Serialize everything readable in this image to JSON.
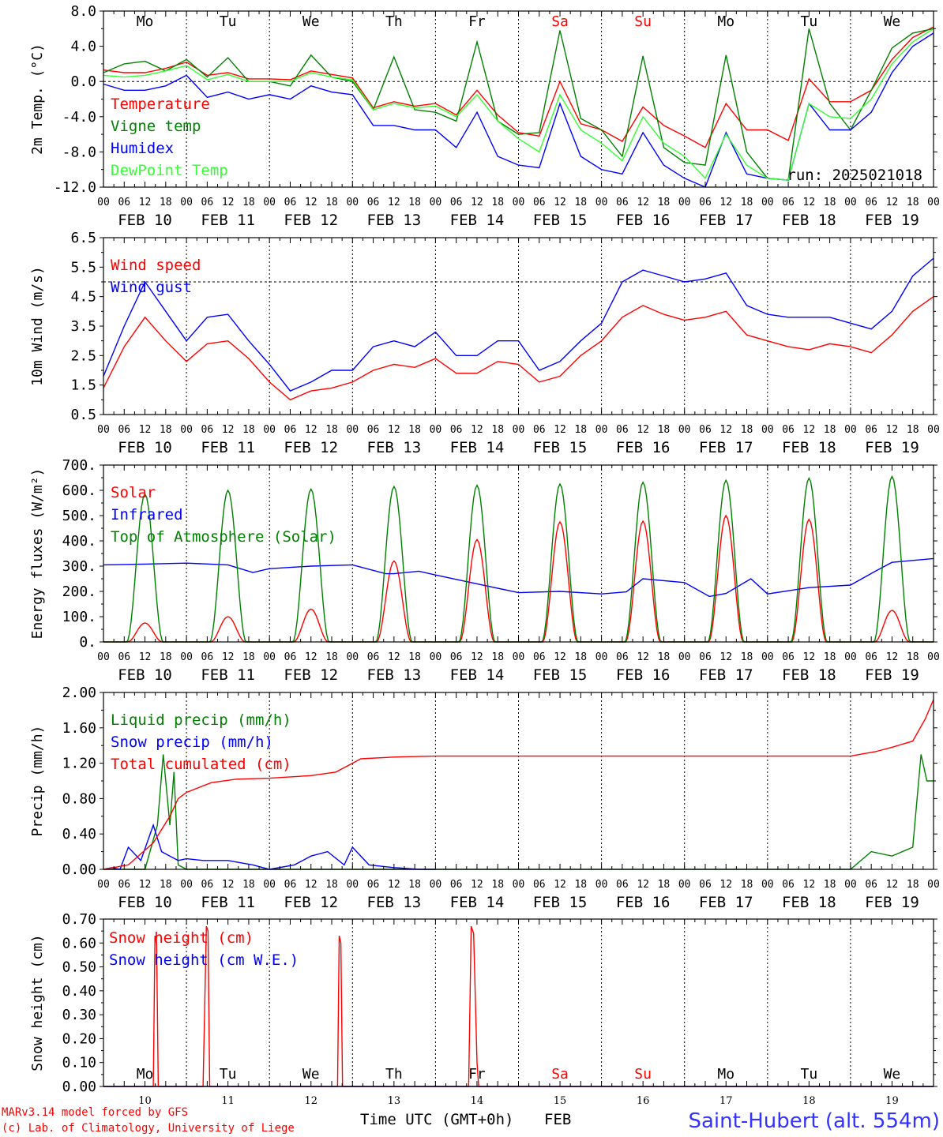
{
  "footer": {
    "model_line": "MARv3.14 model forced by GFS",
    "lab_line": "(c) Lab. of Climatology, University of Liege",
    "axis_title": "Time UTC (GMT+0h)",
    "month": "FEB",
    "station": "Saint-Hubert (alt. 554m)"
  },
  "colors": {
    "red": "#ff0000",
    "dark_green": "#008000",
    "blue": "#0000ff",
    "light_green": "#33ff33",
    "station_blue": "#3333ff"
  },
  "hour_ticks": [
    "00",
    "06",
    "12",
    "18"
  ],
  "final_hour": "00",
  "date_labels": [
    "FEB 10",
    "FEB 11",
    "FEB 12",
    "FEB 13",
    "FEB 14",
    "FEB 15",
    "FEB 16",
    "FEB 17",
    "FEB 18",
    "FEB 19"
  ],
  "weekdays": [
    {
      "label": "Mo",
      "weekend": false
    },
    {
      "label": "Tu",
      "weekend": false
    },
    {
      "label": "We",
      "weekend": false
    },
    {
      "label": "Th",
      "weekend": false
    },
    {
      "label": "Fr",
      "weekend": false
    },
    {
      "label": "Sa",
      "weekend": true
    },
    {
      "label": "Su",
      "weekend": true
    },
    {
      "label": "Mo",
      "weekend": false
    },
    {
      "label": "Tu",
      "weekend": false
    },
    {
      "label": "We",
      "weekend": false
    }
  ],
  "day_numbers": [
    "10",
    "11",
    "12",
    "13",
    "14",
    "15",
    "16",
    "17",
    "18",
    "19"
  ],
  "chart_data": [
    {
      "type": "line",
      "ylabel": "2m Temp. (°C)",
      "ylim": [
        -12,
        8
      ],
      "yticks": [
        "8.0",
        "4.0",
        "0.0",
        "-4.0",
        "-8.0",
        "-12.0"
      ],
      "ytick_values": [
        8,
        4,
        0,
        -4,
        -8,
        -12
      ],
      "reference_line": 0,
      "run_label": "run: 2025021018",
      "x_unit": "days since Feb 10 00 UTC",
      "series": [
        {
          "name": "Temperature",
          "color": "#ff0000",
          "x": [
            0,
            0.25,
            0.5,
            0.75,
            1,
            1.25,
            1.5,
            1.75,
            2,
            2.25,
            2.5,
            2.75,
            3,
            3.25,
            3.5,
            3.75,
            4,
            4.25,
            4.5,
            4.75,
            5,
            5.25,
            5.5,
            5.75,
            6,
            6.25,
            6.5,
            6.75,
            7,
            7.25,
            7.5,
            7.75,
            8,
            8.25,
            8.5,
            8.75,
            9,
            9.25,
            9.5,
            9.75,
            10
          ],
          "values": [
            1.3,
            1.0,
            1.0,
            1.5,
            2.2,
            0.7,
            1.0,
            0.3,
            0.3,
            0.2,
            1.2,
            0.8,
            0.4,
            -3.0,
            -2.3,
            -2.8,
            -2.5,
            -3.8,
            -1.0,
            -3.8,
            -5.8,
            -6.2,
            0.0,
            -4.8,
            -5.5,
            -6.8,
            -2.9,
            -5.0,
            -6.2,
            -7.5,
            -2.5,
            -5.5,
            -5.5,
            -6.7,
            0.3,
            -2.3,
            -2.3,
            -1.0,
            2.5,
            5.0,
            6.2
          ]
        },
        {
          "name": "Vigne temp",
          "color": "#008000",
          "x": [
            0,
            0.25,
            0.5,
            0.75,
            1,
            1.25,
            1.5,
            1.75,
            2,
            2.25,
            2.5,
            2.75,
            3,
            3.25,
            3.5,
            3.75,
            4,
            4.25,
            4.5,
            4.75,
            5,
            5.25,
            5.5,
            5.75,
            6,
            6.25,
            6.5,
            6.75,
            7,
            7.25,
            7.5,
            7.75,
            8,
            8.25,
            8.5,
            8.75,
            9,
            9.25,
            9.5,
            9.75,
            10
          ],
          "values": [
            1.0,
            2.0,
            2.3,
            1.2,
            2.5,
            0.5,
            2.7,
            0.0,
            0.0,
            -0.5,
            3.0,
            0.5,
            0.0,
            -3.2,
            2.8,
            -3.2,
            -3.5,
            -4.5,
            4.5,
            -4.5,
            -6.0,
            -5.8,
            5.8,
            -4.2,
            -5.5,
            -8.5,
            2.9,
            -7.5,
            -9.2,
            -9.5,
            3.0,
            -8.0,
            -11.0,
            -11.2,
            6.0,
            -2.5,
            -5.5,
            -1.0,
            3.8,
            5.5,
            6.0
          ]
        },
        {
          "name": "Humidex",
          "color": "#0000ff",
          "x": [
            0,
            0.25,
            0.5,
            0.75,
            1,
            1.25,
            1.5,
            1.75,
            2,
            2.25,
            2.5,
            2.75,
            3,
            3.25,
            3.5,
            3.75,
            4,
            4.25,
            4.5,
            4.75,
            5,
            5.25,
            5.5,
            5.75,
            6,
            6.25,
            6.5,
            6.75,
            7,
            7.25,
            7.5,
            7.75,
            8,
            8.25,
            8.5,
            8.75,
            9,
            9.25,
            9.5,
            9.75,
            10
          ],
          "values": [
            -0.3,
            -1.0,
            -1.0,
            -0.5,
            0.7,
            -1.8,
            -1.2,
            -2.0,
            -1.5,
            -2.0,
            -0.5,
            -1.2,
            -1.5,
            -5.0,
            -5.0,
            -5.5,
            -5.5,
            -7.5,
            -3.5,
            -8.5,
            -9.5,
            -9.8,
            -2.5,
            -8.5,
            -10.0,
            -10.5,
            -5.8,
            -9.5,
            -11.0,
            -12.0,
            -5.8,
            -10.5,
            -11.0,
            -11.2,
            -2.5,
            -5.5,
            -5.5,
            -3.5,
            1.0,
            4.0,
            5.5
          ]
        },
        {
          "name": "DewPoint Temp",
          "color": "#33ff33",
          "x": [
            0,
            0.25,
            0.5,
            0.75,
            1,
            1.25,
            1.5,
            1.75,
            2,
            2.25,
            2.5,
            2.75,
            3,
            3.25,
            3.5,
            3.75,
            4,
            4.25,
            4.5,
            4.75,
            5,
            5.25,
            5.5,
            5.75,
            6,
            6.25,
            6.5,
            6.75,
            7,
            7.25,
            7.5,
            7.75,
            8,
            8.25,
            8.5,
            8.75,
            9,
            9.25,
            9.5,
            9.75,
            10
          ],
          "values": [
            0.7,
            0.5,
            0.7,
            1.2,
            1.8,
            0.2,
            0.8,
            0.0,
            0.0,
            0.0,
            1.0,
            0.5,
            0.2,
            -3.2,
            -2.5,
            -3.0,
            -2.8,
            -4.0,
            -1.5,
            -4.5,
            -6.5,
            -8.0,
            -1.5,
            -5.5,
            -7.0,
            -9.0,
            -4.0,
            -7.0,
            -8.5,
            -11.0,
            -6.0,
            -9.5,
            -11.0,
            -11.2,
            -2.5,
            -4.0,
            -4.2,
            -2.0,
            2.0,
            4.5,
            6.0
          ]
        }
      ]
    },
    {
      "type": "line",
      "ylabel": "10m Wind (m/s)",
      "ylim": [
        0.5,
        6.5
      ],
      "yticks": [
        "6.5",
        "5.5",
        "4.5",
        "3.5",
        "2.5",
        "1.5",
        "0.5"
      ],
      "ytick_values": [
        6.5,
        5.5,
        4.5,
        3.5,
        2.5,
        1.5,
        0.5
      ],
      "reference_line": 5.0,
      "x_unit": "days since Feb 10 00 UTC",
      "series": [
        {
          "name": "Wind speed",
          "color": "#ff0000",
          "x": [
            0,
            0.25,
            0.5,
            0.75,
            1,
            1.25,
            1.5,
            1.75,
            2,
            2.25,
            2.5,
            2.75,
            3,
            3.25,
            3.5,
            3.75,
            4,
            4.25,
            4.5,
            4.75,
            5,
            5.25,
            5.5,
            5.75,
            6,
            6.25,
            6.5,
            6.75,
            7,
            7.25,
            7.5,
            7.75,
            8,
            8.25,
            8.5,
            8.75,
            9,
            9.25,
            9.5,
            9.75,
            10
          ],
          "values": [
            1.4,
            2.8,
            3.8,
            3.0,
            2.3,
            2.9,
            3.0,
            2.4,
            1.6,
            1.0,
            1.3,
            1.4,
            1.6,
            2.0,
            2.2,
            2.1,
            2.4,
            1.9,
            1.9,
            2.3,
            2.2,
            1.6,
            1.8,
            2.5,
            3.0,
            3.8,
            4.2,
            3.9,
            3.7,
            3.8,
            4.0,
            3.2,
            3.0,
            2.8,
            2.7,
            2.9,
            2.8,
            2.6,
            3.2,
            4.0,
            4.5
          ]
        },
        {
          "name": "Wind gust",
          "color": "#0000ff",
          "x": [
            0,
            0.25,
            0.5,
            0.75,
            1,
            1.25,
            1.5,
            1.75,
            2,
            2.25,
            2.5,
            2.75,
            3,
            3.25,
            3.5,
            3.75,
            4,
            4.25,
            4.5,
            4.75,
            5,
            5.25,
            5.5,
            5.75,
            6,
            6.25,
            6.5,
            6.75,
            7,
            7.25,
            7.5,
            7.75,
            8,
            8.25,
            8.5,
            8.75,
            9,
            9.25,
            9.5,
            9.75,
            10
          ],
          "values": [
            1.8,
            3.5,
            5.0,
            4.0,
            3.0,
            3.8,
            3.9,
            3.0,
            2.2,
            1.3,
            1.6,
            2.0,
            2.0,
            2.8,
            3.0,
            2.8,
            3.3,
            2.5,
            2.5,
            3.0,
            3.0,
            2.0,
            2.3,
            3.0,
            3.6,
            5.0,
            5.4,
            5.2,
            5.0,
            5.1,
            5.3,
            4.2,
            3.9,
            3.8,
            3.8,
            3.8,
            3.6,
            3.4,
            4.0,
            5.2,
            5.8
          ]
        }
      ]
    },
    {
      "type": "line",
      "ylabel": "Energy fluxes (W/m²)",
      "ylim": [
        0,
        700
      ],
      "yticks": [
        "700.",
        "600.",
        "500.",
        "400.",
        "300.",
        "200.",
        "100.",
        "0."
      ],
      "ytick_values": [
        700,
        600,
        500,
        400,
        300,
        200,
        100,
        0
      ],
      "x_unit": "days since Feb 10 00 UTC",
      "series": [
        {
          "name": "Solar",
          "color": "#ff0000",
          "daily_peaks": [
            75,
            100,
            130,
            320,
            405,
            475,
            478,
            500,
            485,
            125
          ],
          "peak_day_fraction": 0.5,
          "half_width_days": 0.21
        },
        {
          "name": "Infrared",
          "color": "#0000ff",
          "x": [
            0,
            0.5,
            1,
            1.5,
            1.8,
            2,
            2.5,
            3,
            3.4,
            3.5,
            3.8,
            4,
            4.5,
            5,
            5.5,
            6,
            6.3,
            6.5,
            7,
            7.3,
            7.5,
            7.8,
            8,
            8.5,
            9,
            9.3,
            9.5,
            10
          ],
          "values": [
            305,
            308,
            312,
            305,
            275,
            290,
            300,
            305,
            270,
            270,
            280,
            265,
            230,
            195,
            200,
            190,
            198,
            250,
            235,
            180,
            192,
            250,
            190,
            215,
            225,
            280,
            315,
            330
          ]
        },
        {
          "name": "Top of Atmosphere (Solar)",
          "color": "#008000",
          "daily_peaks": [
            585,
            600,
            605,
            615,
            620,
            625,
            632,
            640,
            648,
            655
          ],
          "peak_day_fraction": 0.5,
          "half_width_days": 0.22
        }
      ]
    },
    {
      "type": "line",
      "ylabel": "Precip (mm/h)",
      "ylim": [
        0,
        2
      ],
      "yticks": [
        "2.00",
        "1.60",
        "1.20",
        "0.80",
        "0.40",
        "0.00"
      ],
      "ytick_values": [
        2.0,
        1.6,
        1.2,
        0.8,
        0.4,
        0.0
      ],
      "x_unit": "days since Feb 10 00 UTC",
      "series": [
        {
          "name": "Liquid precip (mm/h)",
          "color": "#008000",
          "x": [
            0,
            0.5,
            0.65,
            0.72,
            0.8,
            0.85,
            0.9,
            1.0,
            1.5,
            2.0,
            8.5,
            9.0,
            9.25,
            9.5,
            9.75,
            9.85,
            9.92,
            10
          ],
          "values": [
            0,
            0,
            0.5,
            1.3,
            0.5,
            1.1,
            0.05,
            0,
            0,
            0,
            0,
            0,
            0.2,
            0.15,
            0.25,
            1.3,
            1.0,
            1.0
          ]
        },
        {
          "name": "Snow precip (mm/h)",
          "color": "#0000ff",
          "x": [
            0,
            0.1,
            0.2,
            0.3,
            0.45,
            0.6,
            0.7,
            0.8,
            0.9,
            1.0,
            1.2,
            1.5,
            1.8,
            2.0,
            2.3,
            2.5,
            2.7,
            2.9,
            3.0,
            3.2,
            3.5,
            3.8,
            4.0
          ],
          "values": [
            0,
            0.02,
            0,
            0.25,
            0.1,
            0.5,
            0.2,
            0.15,
            0.1,
            0.12,
            0.1,
            0.1,
            0.05,
            0,
            0.05,
            0.15,
            0.2,
            0.05,
            0.25,
            0.05,
            0.02,
            0,
            0
          ]
        },
        {
          "name": "Total cumulated (cm)",
          "color": "#ff0000",
          "x": [
            0,
            0.3,
            0.6,
            0.8,
            0.9,
            1.0,
            1.3,
            1.6,
            2.0,
            2.5,
            2.8,
            3.0,
            3.1,
            3.5,
            4.0,
            5.0,
            6.0,
            7.0,
            8.0,
            9.0,
            9.3,
            9.5,
            9.75,
            9.9,
            10
          ],
          "values": [
            0,
            0.05,
            0.3,
            0.6,
            0.8,
            0.87,
            0.98,
            1.02,
            1.03,
            1.06,
            1.1,
            1.2,
            1.25,
            1.27,
            1.28,
            1.28,
            1.28,
            1.28,
            1.28,
            1.28,
            1.33,
            1.38,
            1.45,
            1.7,
            1.92
          ]
        }
      ]
    },
    {
      "type": "line",
      "ylabel": "Snow height (cm)",
      "ylim": [
        0,
        0.7
      ],
      "yticks": [
        "0.70",
        "0.60",
        "0.50",
        "0.40",
        "0.30",
        "0.20",
        "0.10",
        "0.00"
      ],
      "ytick_values": [
        0.7,
        0.6,
        0.5,
        0.4,
        0.3,
        0.2,
        0.1,
        0.0
      ],
      "x_unit": "days since Feb 10 00 UTC",
      "series": [
        {
          "name": "Snow height (cm)",
          "color": "#ff0000",
          "x": [
            0,
            0.6,
            0.62,
            0.64,
            0.66,
            1.2,
            1.24,
            1.26,
            1.28,
            2.82,
            2.84,
            2.86,
            2.88,
            4.4,
            4.43,
            4.46,
            4.5,
            4.52,
            10
          ],
          "values": [
            0,
            0,
            0.63,
            0.6,
            0,
            0,
            0.67,
            0.65,
            0,
            0,
            0.63,
            0.6,
            0,
            0,
            0.67,
            0.64,
            0.1,
            0,
            0
          ]
        },
        {
          "name": "Snow height (cm W.E.)",
          "color": "#0000ff",
          "x": [
            0,
            10
          ],
          "values": [
            0,
            0
          ]
        }
      ]
    }
  ]
}
